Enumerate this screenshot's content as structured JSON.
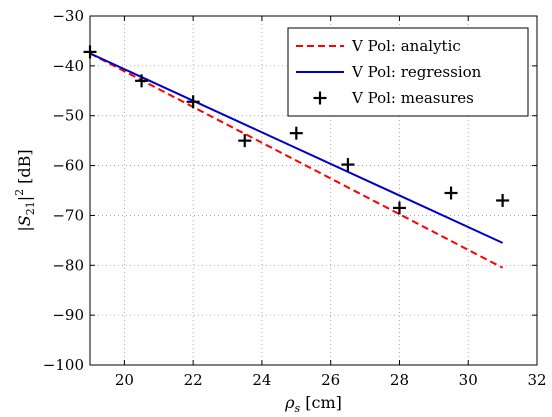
{
  "chart_data": {
    "type": "line",
    "xlabel": "ρ_s [cm]",
    "ylabel": "|S21|2 [dB]",
    "xlim": [
      19,
      32
    ],
    "ylim": [
      -100,
      -30
    ],
    "xticks": [
      20,
      22,
      24,
      26,
      28,
      30,
      32
    ],
    "yticks": [
      -100,
      -90,
      -80,
      -70,
      -60,
      -50,
      -40,
      -30
    ],
    "grid": true,
    "legend_position": "top-right",
    "series": [
      {
        "name": "V Pol: analytic",
        "style": "dashed",
        "color": "#ff0000",
        "x": [
          19,
          31
        ],
        "y": [
          -37.5,
          -80.5
        ]
      },
      {
        "name": "V Pol: regression",
        "style": "solid",
        "color": "#0000cc",
        "x": [
          19,
          31
        ],
        "y": [
          -37.5,
          -75.5
        ]
      },
      {
        "name": "V Pol: measures",
        "style": "marker-plus",
        "color": "#000000",
        "x": [
          19,
          20.5,
          22,
          23.5,
          25,
          26.5,
          28,
          29.5,
          31
        ],
        "y": [
          -37.2,
          -43,
          -47.2,
          -55,
          -53.5,
          -59.8,
          -68.5,
          -65.5,
          -67
        ]
      }
    ]
  }
}
